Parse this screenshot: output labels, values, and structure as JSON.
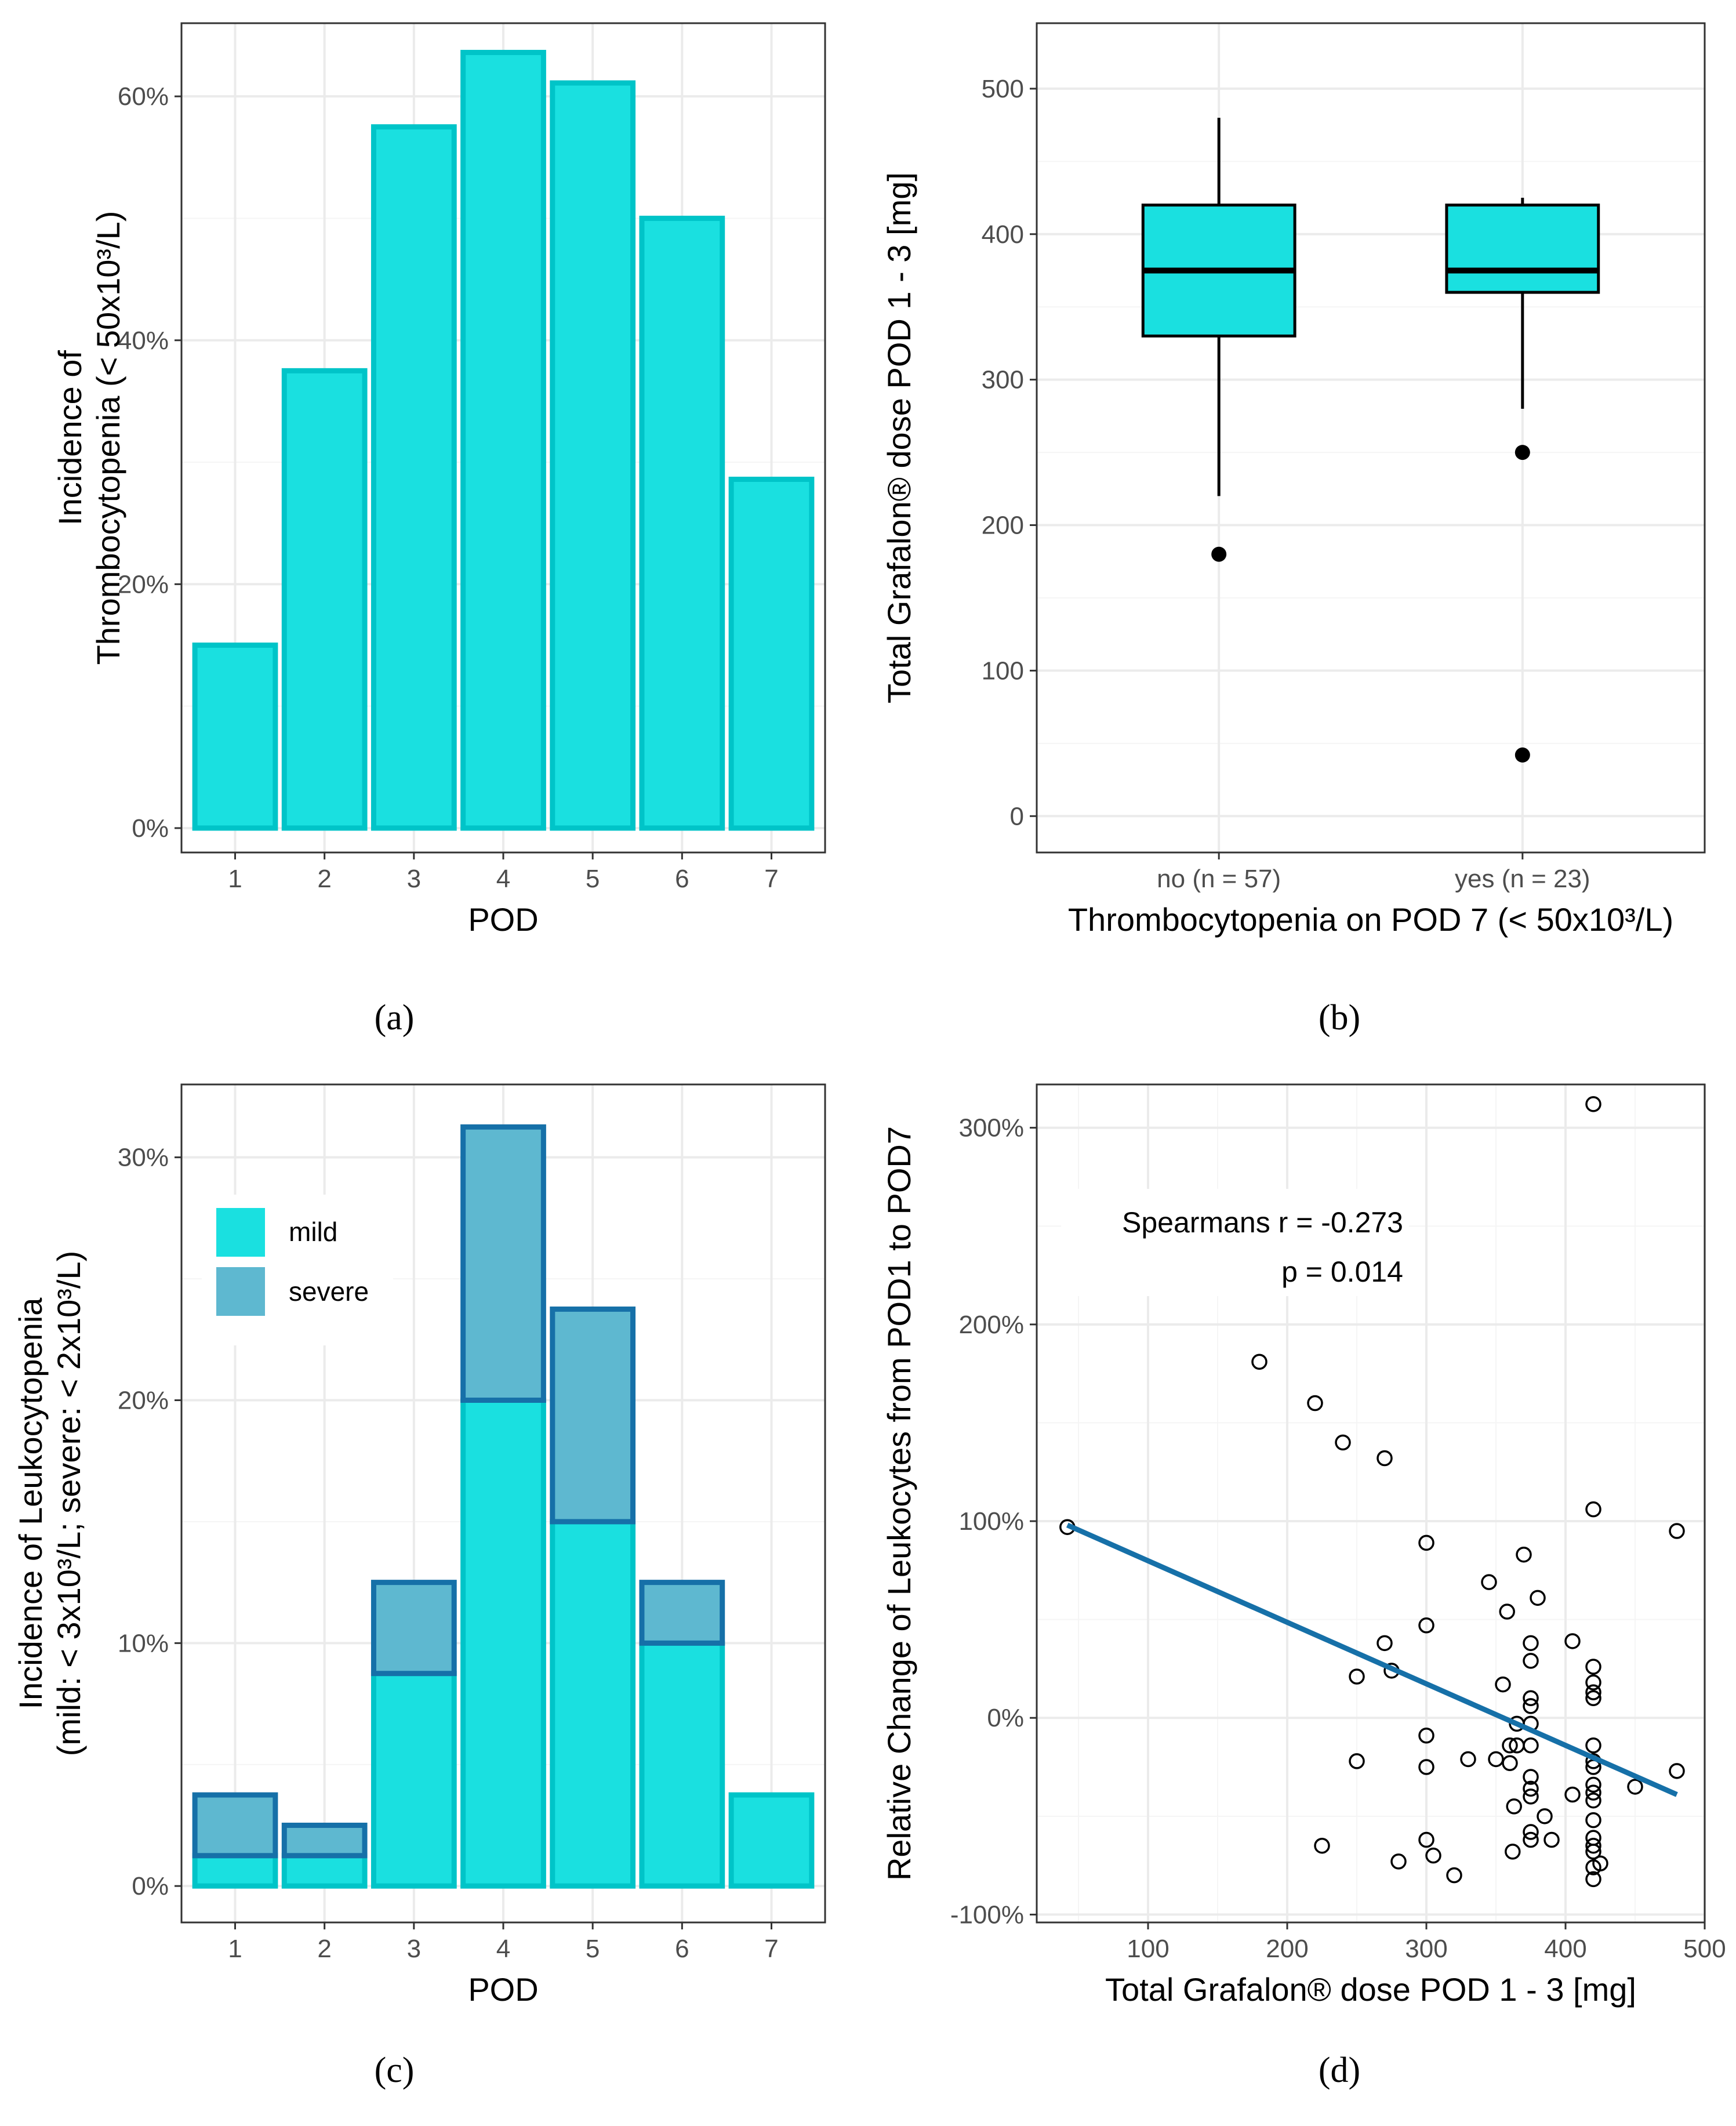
{
  "colors": {
    "mild_fill": "#1ae0e0",
    "mild_stroke": "#00c4c8",
    "severe_fill": "#5eb8d0",
    "severe_stroke": "#1670a8",
    "box_fill": "#1ae0e0",
    "reg_line": "#1670a8",
    "grid_major": "#ebebeb",
    "grid_minor": "#f5f5f5",
    "panel_border": "#333333"
  },
  "panels": {
    "a": {
      "label": "(a)"
    },
    "b": {
      "label": "(b)"
    },
    "c": {
      "label": "(c)"
    },
    "d": {
      "label": "(d)"
    }
  },
  "chart_data": [
    {
      "id": "a",
      "type": "bar",
      "xlabel": "POD",
      "ylabel": [
        "Incidence of",
        "Thrombocytopenia (< 50x10³/L)"
      ],
      "categories": [
        "1",
        "2",
        "3",
        "4",
        "5",
        "6",
        "7"
      ],
      "values": [
        0.15,
        0.375,
        0.575,
        0.636,
        0.611,
        0.5,
        0.286
      ],
      "ylim": [
        -0.02,
        0.66
      ],
      "yticks": [
        0,
        0.2,
        0.4,
        0.6
      ],
      "ytick_labels": [
        "0%",
        "20%",
        "40%",
        "60%"
      ]
    },
    {
      "id": "b",
      "type": "boxplot",
      "xlabel": "Thrombocytopenia on POD 7 (< 50x10³/L)",
      "ylabel": "Total Grafalon® dose POD 1 - 3 [mg]",
      "categories": [
        "no (n = 57)",
        "yes (n = 23)"
      ],
      "boxes": [
        {
          "name": "no (n = 57)",
          "q1": 330,
          "median": 375,
          "q3": 420,
          "whisker_low": 220,
          "whisker_high": 480,
          "outliers": [
            180
          ]
        },
        {
          "name": "yes (n = 23)",
          "q1": 360,
          "median": 375,
          "q3": 420,
          "whisker_low": 280,
          "whisker_high": 425,
          "outliers": [
            250,
            42
          ]
        }
      ],
      "ylim": [
        -25,
        545
      ],
      "yticks": [
        0,
        100,
        200,
        300,
        400,
        500
      ],
      "ytick_labels": [
        "0",
        "100",
        "200",
        "300",
        "400",
        "500"
      ]
    },
    {
      "id": "c",
      "type": "bar",
      "stacked": true,
      "xlabel": "POD",
      "ylabel": [
        "Incidence of Leukocytopenia",
        "(mild: < 3x10³/L; severe: < 2x10³/L)"
      ],
      "categories": [
        "1",
        "2",
        "3",
        "4",
        "5",
        "6",
        "7"
      ],
      "series": [
        {
          "name": "mild",
          "values": [
            0.0125,
            0.0125,
            0.0875,
            0.2,
            0.15,
            0.1,
            0.0375
          ]
        },
        {
          "name": "severe",
          "values": [
            0.025,
            0.0125,
            0.0375,
            0.1125,
            0.0875,
            0.025,
            0
          ]
        }
      ],
      "legend": {
        "position": "top-left",
        "entries": [
          "mild",
          "severe"
        ]
      },
      "ylim": [
        -0.015,
        0.33
      ],
      "yticks": [
        0,
        0.1,
        0.2,
        0.3
      ],
      "ytick_labels": [
        "0%",
        "10%",
        "20%",
        "30%"
      ]
    },
    {
      "id": "d",
      "type": "scatter",
      "xlabel": "Total Grafalon® dose POD 1 - 3 [mg]",
      "ylabel": "Relative Change of Leukocytes from POD1 to POD7",
      "x": [
        42,
        180,
        220,
        225,
        240,
        250,
        250,
        270,
        270,
        275,
        280,
        300,
        300,
        300,
        300,
        300,
        305,
        320,
        330,
        345,
        350,
        355,
        358,
        360,
        360,
        362,
        363,
        365,
        365,
        370,
        375,
        375,
        375,
        375,
        375,
        375,
        375,
        375,
        375,
        375,
        375,
        380,
        385,
        390,
        405,
        405,
        420,
        420,
        420,
        420,
        420,
        420,
        420,
        420,
        420,
        420,
        420,
        420,
        420,
        420,
        420,
        420,
        420,
        420,
        425,
        450,
        480,
        480
      ],
      "y": [
        0.97,
        1.81,
        1.6,
        -0.65,
        1.4,
        -0.22,
        0.21,
        0.38,
        1.32,
        0.24,
        -0.73,
        0.89,
        0.47,
        -0.09,
        -0.25,
        -0.62,
        -0.7,
        -0.8,
        -0.21,
        0.69,
        -0.21,
        0.17,
        0.54,
        -0.14,
        -0.23,
        -0.68,
        -0.45,
        -0.03,
        -0.14,
        0.83,
        0.38,
        0.29,
        0.1,
        0.06,
        -0.03,
        -0.14,
        -0.3,
        -0.36,
        -0.4,
        -0.58,
        -0.62,
        0.61,
        -0.5,
        -0.62,
        0.39,
        -0.39,
        3.12,
        1.06,
        0.26,
        0.18,
        0.13,
        0.1,
        -0.14,
        -0.22,
        -0.25,
        -0.34,
        -0.38,
        -0.42,
        -0.52,
        -0.61,
        -0.65,
        -0.68,
        -0.76,
        -0.82,
        -0.74,
        -0.35,
        0.95,
        -0.27
      ],
      "regression": {
        "x": [
          42,
          480
        ],
        "y": [
          0.98,
          -0.39
        ]
      },
      "annotation": {
        "line1": "Spearmans r = -0.273",
        "line2": "p =  0.014"
      },
      "xlim": [
        20,
        500
      ],
      "ylim": [
        -1.04,
        3.22
      ],
      "xticks": [
        100,
        200,
        300,
        400,
        500
      ],
      "xtick_labels": [
        "100",
        "200",
        "300",
        "400",
        "500"
      ],
      "yticks": [
        -1,
        0,
        1,
        2,
        3
      ],
      "ytick_labels": [
        "-100%",
        "0%",
        "100%",
        "200%",
        "300%"
      ]
    }
  ]
}
